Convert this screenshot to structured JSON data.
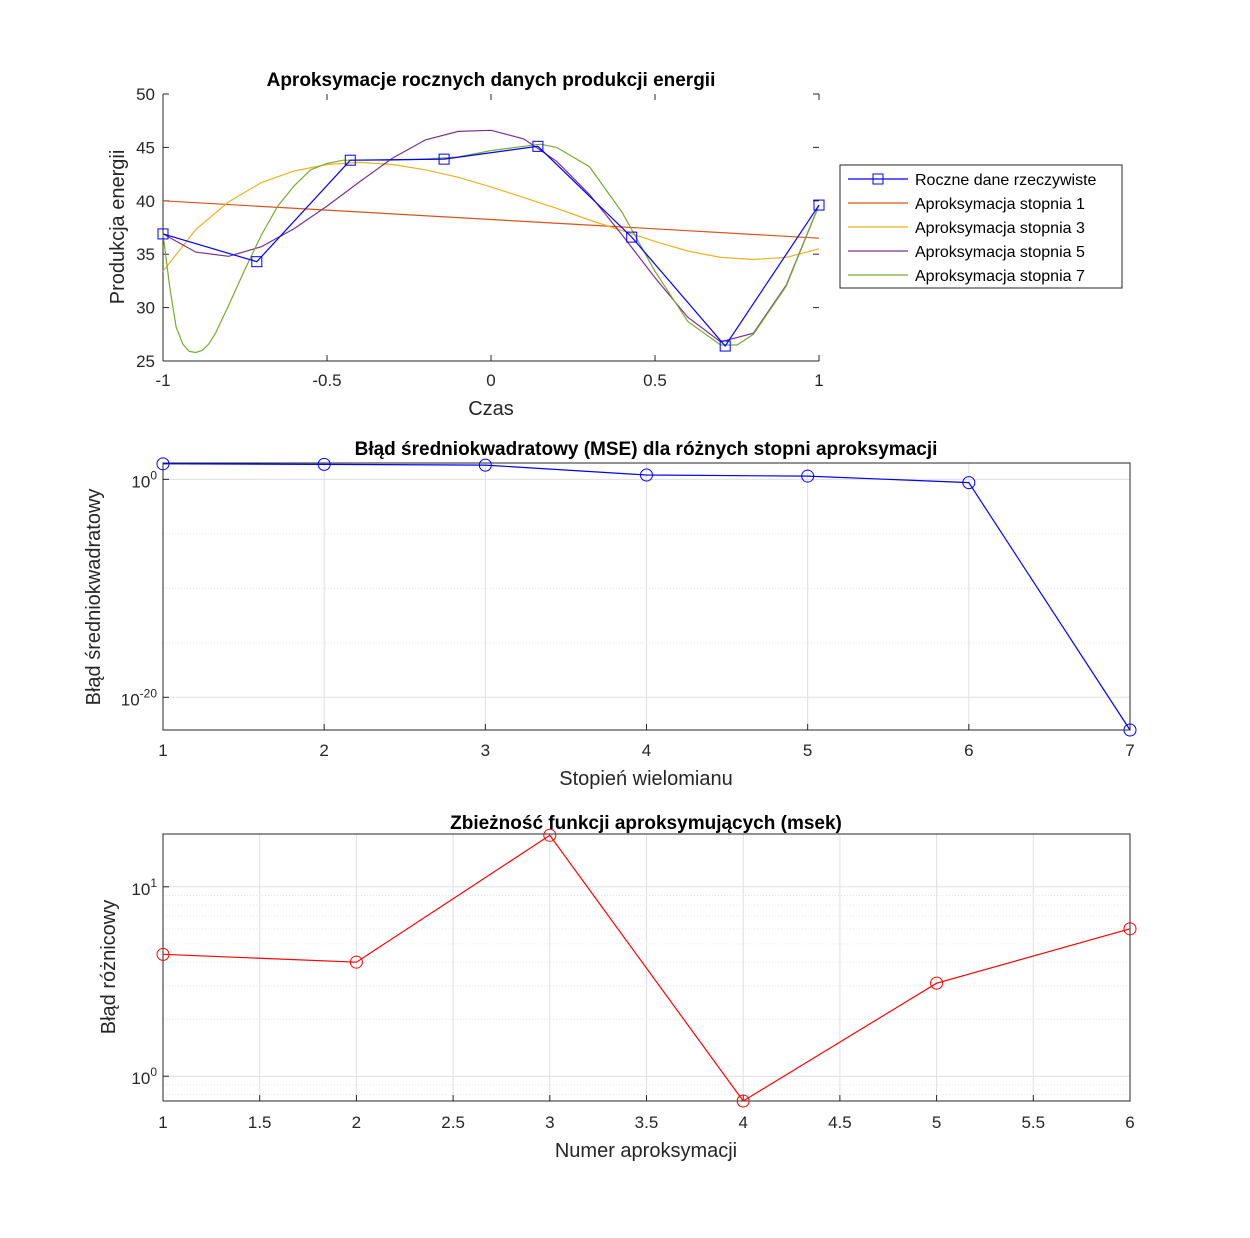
{
  "chart_data": [
    {
      "type": "line",
      "title": "Aproksymacje rocznych danych produkcji energii",
      "xlabel": "Czas",
      "ylabel": "Produkcja energii",
      "xlim": [
        -1,
        1
      ],
      "ylim": [
        25,
        50
      ],
      "xticks": [
        -1,
        -0.5,
        0,
        0.5,
        1
      ],
      "xtick_labels": [
        "-1",
        "-0.5",
        "0",
        "0.5",
        "1"
      ],
      "yticks": [
        25,
        30,
        35,
        40,
        45,
        50
      ],
      "ytick_labels": [
        "25",
        "30",
        "35",
        "40",
        "45",
        "50"
      ],
      "legend_position": "right",
      "series": [
        {
          "name": "Roczne dane rzeczywiste",
          "color": "#0000ff",
          "marker": "square",
          "x": [
            -1,
            -0.714,
            -0.429,
            -0.143,
            0.143,
            0.429,
            0.714,
            1
          ],
          "y": [
            36.9,
            34.3,
            43.8,
            43.9,
            45.1,
            36.6,
            26.4,
            39.6
          ]
        },
        {
          "name": "Aproksymacja stopnia 1",
          "color": "#d95319",
          "x": [
            -1,
            1
          ],
          "y": [
            40.0,
            36.5
          ]
        },
        {
          "name": "Aproksymacja stopnia 3",
          "color": "#edb120",
          "x": [
            -1,
            -0.9,
            -0.8,
            -0.7,
            -0.6,
            -0.5,
            -0.4,
            -0.3,
            -0.2,
            -0.1,
            0,
            0.1,
            0.2,
            0.3,
            0.4,
            0.5,
            0.6,
            0.7,
            0.8,
            0.9,
            1
          ],
          "y": [
            33.4,
            37.3,
            39.9,
            41.7,
            42.8,
            43.4,
            43.6,
            43.4,
            42.9,
            42.2,
            41.3,
            40.3,
            39.3,
            38.2,
            37.2,
            36.2,
            35.3,
            34.7,
            34.5,
            34.7,
            35.5
          ]
        },
        {
          "name": "Aproksymacja stopnia 5",
          "color": "#7e2f8e",
          "x": [
            -1,
            -0.9,
            -0.8,
            -0.7,
            -0.6,
            -0.5,
            -0.4,
            -0.3,
            -0.2,
            -0.1,
            0,
            0.1,
            0.2,
            0.3,
            0.4,
            0.5,
            0.6,
            0.7,
            0.8,
            0.9,
            1
          ],
          "y": [
            36.9,
            35.2,
            34.8,
            35.7,
            37.4,
            39.5,
            41.8,
            44.0,
            45.7,
            46.5,
            46.6,
            45.8,
            43.7,
            40.6,
            36.8,
            32.8,
            29.1,
            26.8,
            27.6,
            32.1,
            39.6
          ]
        },
        {
          "name": "Aproksymacja stopnia 7",
          "color": "#77ac30",
          "x": [
            -1,
            -0.98,
            -0.96,
            -0.94,
            -0.92,
            -0.9,
            -0.88,
            -0.86,
            -0.84,
            -0.8,
            -0.75,
            -0.7,
            -0.65,
            -0.6,
            -0.55,
            -0.5,
            -0.45,
            -0.4,
            -0.3,
            -0.2,
            -0.1,
            0,
            0.1,
            0.15,
            0.2,
            0.3,
            0.4,
            0.5,
            0.6,
            0.7,
            0.75,
            0.8,
            0.9,
            1
          ],
          "y": [
            36.9,
            32.0,
            28.2,
            26.6,
            25.9,
            25.8,
            26.0,
            26.6,
            27.6,
            30.2,
            33.6,
            36.8,
            39.5,
            41.4,
            42.9,
            43.5,
            43.8,
            43.8,
            43.8,
            43.9,
            44.1,
            44.7,
            45.1,
            45.3,
            45.0,
            43.2,
            38.9,
            33.4,
            28.7,
            26.5,
            26.5,
            27.5,
            32.0,
            39.6
          ]
        }
      ]
    },
    {
      "type": "line",
      "title": "Błąd średniokwadratowy (MSE) dla różnych stopni aproksymacji",
      "xlabel": "Stopień wielomianu",
      "ylabel": "Błąd średniokwadratowy",
      "yscale": "log",
      "xlim": [
        1,
        7
      ],
      "ylim_log10": [
        -23,
        1.5
      ],
      "xticks": [
        1,
        2,
        3,
        4,
        5,
        6,
        7
      ],
      "xtick_labels": [
        "1",
        "2",
        "3",
        "4",
        "5",
        "6",
        "7"
      ],
      "ytick_labels": [
        {
          "base": "10",
          "exp": "0"
        },
        {
          "base": "10",
          "exp": "-20"
        }
      ],
      "grid": true,
      "series": [
        {
          "color": "#0000ff",
          "marker": "circle",
          "x": [
            1,
            2,
            3,
            4,
            5,
            6,
            7
          ],
          "y": [
            26.5,
            23.5,
            20.3,
            2.5,
            2.0,
            0.5,
            1e-23
          ]
        }
      ]
    },
    {
      "type": "line",
      "title": "Zbieżność funkcji aproksymujących (msek)",
      "xlabel": "Numer aproksymacji",
      "ylabel": "Błąd różnicowy",
      "yscale": "log",
      "xlim": [
        1,
        6
      ],
      "ylim": [
        0.74,
        19.0
      ],
      "xticks": [
        1,
        1.5,
        2,
        2.5,
        3,
        3.5,
        4,
        4.5,
        5,
        5.5,
        6
      ],
      "xtick_labels": [
        "1",
        "1.5",
        "2",
        "2.5",
        "3",
        "3.5",
        "4",
        "4.5",
        "5",
        "5.5",
        "6"
      ],
      "ytick_labels": [
        {
          "base": "10",
          "exp": "1"
        },
        {
          "base": "10",
          "exp": "0"
        }
      ],
      "grid": true,
      "series": [
        {
          "color": "#ff0000",
          "marker": "circle",
          "x": [
            1,
            2,
            3,
            4,
            5,
            6
          ],
          "y": [
            4.4,
            4.0,
            18.7,
            0.74,
            3.1,
            6.0
          ]
        }
      ]
    }
  ]
}
